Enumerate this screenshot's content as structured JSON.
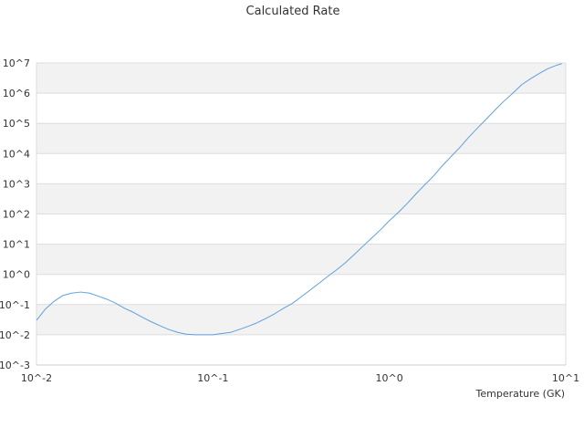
{
  "chart_data": {
    "type": "line",
    "title": "Calculated Rate",
    "xlabel": "Temperature (GK)",
    "ylabel": "",
    "x_scale": "log",
    "y_scale": "log",
    "xlim": [
      0.01,
      10
    ],
    "ylim": [
      0.001,
      10000000
    ],
    "grid": "horizontal bands",
    "legend": "none",
    "line_color": "#5fa0e0",
    "band_color": "#f2f2f2",
    "x_ticks": [
      {
        "value": 0.01,
        "label": "10^-2"
      },
      {
        "value": 0.1,
        "label": "10^-1"
      },
      {
        "value": 1,
        "label": "10^0"
      },
      {
        "value": 10,
        "label": "10^1"
      }
    ],
    "y_ticks": [
      {
        "value": 10000000,
        "label": "10^7"
      },
      {
        "value": 1000000,
        "label": "10^6"
      },
      {
        "value": 100000,
        "label": "10^5"
      },
      {
        "value": 10000,
        "label": "10^4"
      },
      {
        "value": 1000,
        "label": "10^3"
      },
      {
        "value": 100,
        "label": "10^2"
      },
      {
        "value": 10,
        "label": "10^1"
      },
      {
        "value": 1,
        "label": "10^0"
      },
      {
        "value": 0.1,
        "label": "10^-1"
      },
      {
        "value": 0.01,
        "label": "10^-2"
      },
      {
        "value": 0.001,
        "label": "10^-3"
      }
    ],
    "series": [
      {
        "x": [
          0.01,
          0.0112,
          0.0126,
          0.0141,
          0.0158,
          0.0178,
          0.02,
          0.0224,
          0.0251,
          0.0282,
          0.0316,
          0.0355,
          0.0398,
          0.0447,
          0.0501,
          0.0562,
          0.0631,
          0.0708,
          0.0794,
          0.0891,
          0.1,
          0.112,
          0.126,
          0.141,
          0.158,
          0.178,
          0.2,
          0.224,
          0.251,
          0.282,
          0.316,
          0.355,
          0.398,
          0.447,
          0.501,
          0.562,
          0.631,
          0.708,
          0.794,
          0.891,
          1.0,
          1.12,
          1.26,
          1.41,
          1.58,
          1.78,
          2.0,
          2.24,
          2.51,
          2.82,
          3.16,
          3.55,
          3.98,
          4.47,
          5.01,
          5.62,
          6.31,
          7.08,
          7.94,
          8.91,
          9.5
        ],
        "y": [
          0.03,
          0.07,
          0.13,
          0.2,
          0.24,
          0.26,
          0.24,
          0.19,
          0.15,
          0.11,
          0.075,
          0.055,
          0.038,
          0.027,
          0.02,
          0.015,
          0.012,
          0.0105,
          0.01,
          0.01,
          0.01,
          0.011,
          0.012,
          0.015,
          0.019,
          0.025,
          0.035,
          0.05,
          0.075,
          0.11,
          0.18,
          0.3,
          0.5,
          0.85,
          1.4,
          2.4,
          4.5,
          8.5,
          16,
          30,
          60,
          110,
          220,
          450,
          900,
          1800,
          4000,
          8000,
          16000,
          35000,
          70000,
          140000,
          280000,
          550000,
          1000000,
          1900000,
          3000000,
          4500000,
          6500000,
          8500000,
          9500000
        ]
      }
    ]
  }
}
